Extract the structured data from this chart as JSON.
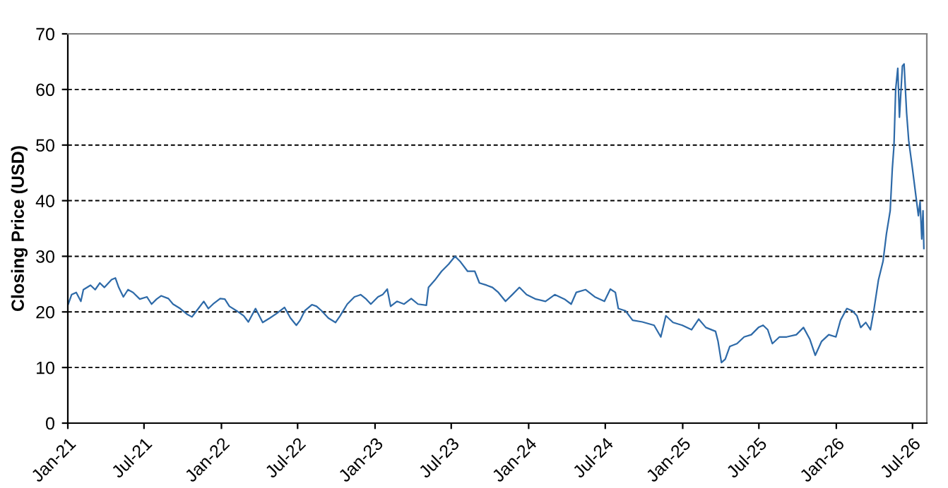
{
  "chart_data": {
    "type": "line",
    "ylabel": "Closing Price (USD)",
    "xlim": [
      "2021-01-01",
      "2026-08-04"
    ],
    "ylim": [
      0,
      70
    ],
    "yticks": [
      0,
      10,
      20,
      30,
      40,
      50,
      60,
      70
    ],
    "xticks": [
      {
        "value": "2021-01-01",
        "label": "Jan-21"
      },
      {
        "value": "2021-07-01",
        "label": "Jul-21"
      },
      {
        "value": "2022-01-01",
        "label": "Jan-22"
      },
      {
        "value": "2022-07-01",
        "label": "Jul-22"
      },
      {
        "value": "2023-01-01",
        "label": "Jan-23"
      },
      {
        "value": "2023-07-01",
        "label": "Jul-23"
      },
      {
        "value": "2024-01-01",
        "label": "Jan-24"
      },
      {
        "value": "2024-07-01",
        "label": "Jul-24"
      },
      {
        "value": "2025-01-01",
        "label": "Jan-25"
      },
      {
        "value": "2025-07-01",
        "label": "Jul-25"
      },
      {
        "value": "2026-01-01",
        "label": "Jan-26"
      },
      {
        "value": "2026-07-01",
        "label": "Jul-26"
      }
    ],
    "grid": "y",
    "line_style": "solid",
    "marker": "none",
    "x": [
      "2021-01-02",
      "2021-01-10",
      "2021-01-21",
      "2021-02-01",
      "2021-02-07",
      "2021-02-24",
      "2021-03-07",
      "2021-03-18",
      "2021-03-29",
      "2021-04-15",
      "2021-04-24",
      "2021-05-02",
      "2021-05-13",
      "2021-05-24",
      "2021-06-05",
      "2021-06-21",
      "2021-07-08",
      "2021-07-19",
      "2021-07-31",
      "2021-08-11",
      "2021-08-28",
      "2021-09-08",
      "2021-09-25",
      "2021-10-11",
      "2021-10-23",
      "2021-11-03",
      "2021-11-20",
      "2021-12-01",
      "2021-12-12",
      "2021-12-29",
      "2022-01-09",
      "2022-01-20",
      "2022-02-06",
      "2022-02-23",
      "2022-03-06",
      "2022-03-23",
      "2022-04-09",
      "2022-04-26",
      "2022-05-12",
      "2022-05-31",
      "2022-06-14",
      "2022-06-28",
      "2022-07-07",
      "2022-07-18",
      "2022-08-04",
      "2022-08-15",
      "2022-08-27",
      "2022-09-12",
      "2022-09-29",
      "2022-10-10",
      "2022-10-27",
      "2022-11-13",
      "2022-11-28",
      "2022-12-11",
      "2022-12-22",
      "2023-01-08",
      "2023-01-19",
      "2023-01-30",
      "2023-02-07",
      "2023-02-22",
      "2023-03-11",
      "2023-03-28",
      "2023-04-13",
      "2023-05-03",
      "2023-05-08",
      "2023-05-23",
      "2023-06-08",
      "2023-06-25",
      "2023-07-10",
      "2023-07-23",
      "2023-08-09",
      "2023-08-26",
      "2023-09-06",
      "2023-09-23",
      "2023-10-07",
      "2023-10-21",
      "2023-11-07",
      "2023-11-23",
      "2023-12-10",
      "2023-12-27",
      "2024-01-18",
      "2024-02-10",
      "2024-03-03",
      "2024-03-26",
      "2024-04-11",
      "2024-04-23",
      "2024-05-15",
      "2024-06-06",
      "2024-06-29",
      "2024-07-13",
      "2024-07-25",
      "2024-08-01",
      "2024-08-18",
      "2024-09-04",
      "2024-09-27",
      "2024-10-25",
      "2024-11-10",
      "2024-11-22",
      "2024-12-09",
      "2024-12-31",
      "2025-01-22",
      "2025-02-08",
      "2025-02-25",
      "2025-03-20",
      "2025-03-26",
      "2025-04-03",
      "2025-04-12",
      "2025-04-23",
      "2025-05-10",
      "2025-05-27",
      "2025-06-13",
      "2025-06-30",
      "2025-07-11",
      "2025-07-22",
      "2025-08-02",
      "2025-08-19",
      "2025-09-05",
      "2025-09-28",
      "2025-10-15",
      "2025-10-30",
      "2025-11-12",
      "2025-11-27",
      "2025-12-14",
      "2025-12-31",
      "2026-01-11",
      "2026-01-26",
      "2026-02-08",
      "2026-02-19",
      "2026-02-28",
      "2026-03-12",
      "2026-03-23",
      "2026-03-31",
      "2026-04-11",
      "2026-04-22",
      "2026-04-30",
      "2026-05-09",
      "2026-05-14",
      "2026-05-18",
      "2026-05-22",
      "2026-05-27",
      "2026-05-31",
      "2026-06-07",
      "2026-06-11",
      "2026-06-17",
      "2026-06-22",
      "2026-07-01",
      "2026-07-08",
      "2026-07-15",
      "2026-07-19",
      "2026-07-23",
      "2026-07-26",
      "2026-07-28"
    ],
    "series": [
      {
        "color": "#2e6aa8",
        "values": [
          21.4,
          23.1,
          23.5,
          21.9,
          24,
          24.8,
          24,
          25.2,
          24.4,
          25.8,
          26.1,
          24.4,
          22.7,
          24,
          23.5,
          22.3,
          22.7,
          21.4,
          22.3,
          22.9,
          22.4,
          21.4,
          20.6,
          19.6,
          19.1,
          20.2,
          21.9,
          20.6,
          21.4,
          22.4,
          22.3,
          21,
          20.2,
          19.3,
          18.2,
          20.6,
          18.1,
          18.9,
          19.7,
          20.8,
          18.9,
          17.6,
          18.5,
          20.2,
          21.3,
          21,
          20.2,
          18.9,
          18.1,
          19.3,
          21.4,
          22.7,
          23.1,
          22.3,
          21.4,
          22.7,
          23.1,
          24.1,
          21,
          21.9,
          21.4,
          22.4,
          21.4,
          21.2,
          24.4,
          25.7,
          27.3,
          28.6,
          30,
          29,
          27.3,
          27.3,
          25.2,
          24.8,
          24.4,
          23.5,
          21.9,
          23.1,
          24.4,
          23.1,
          22.3,
          21.9,
          23.1,
          22.3,
          21.4,
          23.5,
          24,
          22.7,
          21.9,
          24.1,
          23.5,
          20.6,
          20.2,
          18.5,
          18.2,
          17.6,
          15.5,
          19.3,
          18.1,
          17.6,
          16.8,
          18.7,
          17.2,
          16.5,
          14.7,
          10.9,
          11.5,
          13.8,
          14.3,
          15.5,
          15.9,
          17.2,
          17.6,
          16.8,
          14.3,
          15.5,
          15.5,
          15.9,
          17.2,
          15.1,
          12.2,
          14.7,
          15.9,
          15.5,
          18.5,
          20.6,
          20.2,
          19.3,
          17.2,
          18.1,
          16.8,
          20.2,
          25.7,
          29.1,
          34,
          38.2,
          45.7,
          49.9,
          60,
          63.8,
          55,
          64.2,
          64.6,
          55.8,
          50.8,
          45.7,
          41.5,
          37.3,
          39.8,
          33.1,
          38.2,
          31.4
        ]
      }
    ]
  }
}
